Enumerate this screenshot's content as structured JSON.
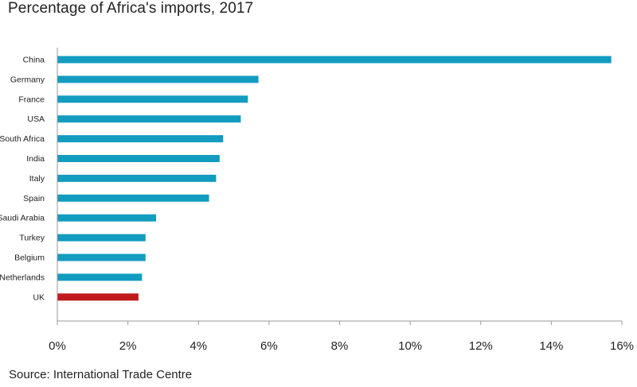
{
  "chart_data": {
    "type": "bar",
    "orientation": "horizontal",
    "title": "Percentage of Africa's imports, 2017",
    "source": "Source: International Trade Centre",
    "categories": [
      "China",
      "Germany",
      "France",
      "USA",
      "South Africa",
      "India",
      "Italy",
      "Spain",
      "Saudi Arabia",
      "Turkey",
      "Belgium",
      "Netherlands",
      "UK"
    ],
    "values": [
      15.7,
      5.7,
      5.4,
      5.2,
      4.7,
      4.6,
      4.5,
      4.3,
      2.8,
      2.5,
      2.5,
      2.4,
      2.3
    ],
    "xlim": [
      0,
      16
    ],
    "xticks": [
      0,
      2,
      4,
      6,
      8,
      10,
      12,
      14,
      16
    ],
    "xtick_labels": [
      "0%",
      "2%",
      "4%",
      "6%",
      "8%",
      "10%",
      "12%",
      "14%",
      "16%"
    ],
    "xlabel": "",
    "ylabel": "",
    "grid": false,
    "colors": {
      "default": "#129cc0",
      "highlight": "#c01a1a",
      "axis": "#999999"
    },
    "highlight_category": "UK"
  }
}
